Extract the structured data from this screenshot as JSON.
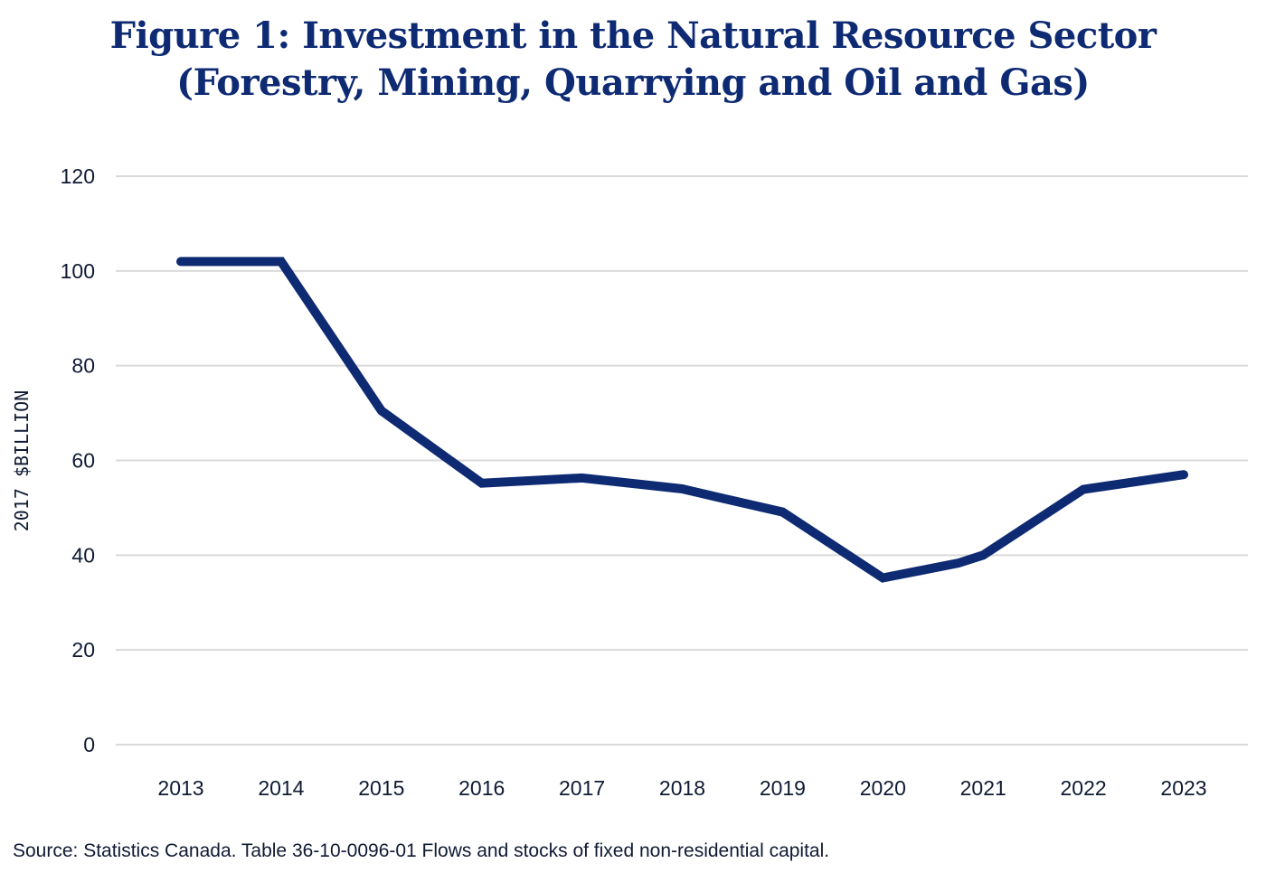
{
  "chart_data": {
    "type": "line",
    "title": "Figure 1: Investment in the Natural Resource Sector",
    "subtitle": "(Forestry, Mining, Quarrying and Oil and Gas)",
    "xlabel": "",
    "ylabel": "2017 $BILLION",
    "categories": [
      "2013",
      "2014",
      "2015",
      "2016",
      "2017",
      "2018",
      "2019",
      "2020",
      "2021",
      "2022",
      "2023"
    ],
    "yticks": [
      0,
      20,
      40,
      60,
      80,
      100,
      120
    ],
    "ylim": [
      0,
      120
    ],
    "grid": true,
    "legend": "none",
    "series": [
      {
        "name": "Investment",
        "color": "#0d2a73",
        "points": [
          {
            "x": 2013,
            "y": 102.0
          },
          {
            "x": 2014,
            "y": 102.0
          },
          {
            "x": 2015,
            "y": 70.5
          },
          {
            "x": 2016,
            "y": 55.2
          },
          {
            "x": 2017,
            "y": 56.3
          },
          {
            "x": 2018,
            "y": 54.0
          },
          {
            "x": 2018.4,
            "y": 52.0
          },
          {
            "x": 2019,
            "y": 49.1
          },
          {
            "x": 2020,
            "y": 35.2
          },
          {
            "x": 2020.75,
            "y": 38.3
          },
          {
            "x": 2021,
            "y": 40.0
          },
          {
            "x": 2022,
            "y": 53.9
          },
          {
            "x": 2023,
            "y": 57.0
          }
        ]
      }
    ]
  },
  "source": "Source: Statistics Canada. Table 36-10-0096-01 Flows and stocks of fixed non-residential capital."
}
